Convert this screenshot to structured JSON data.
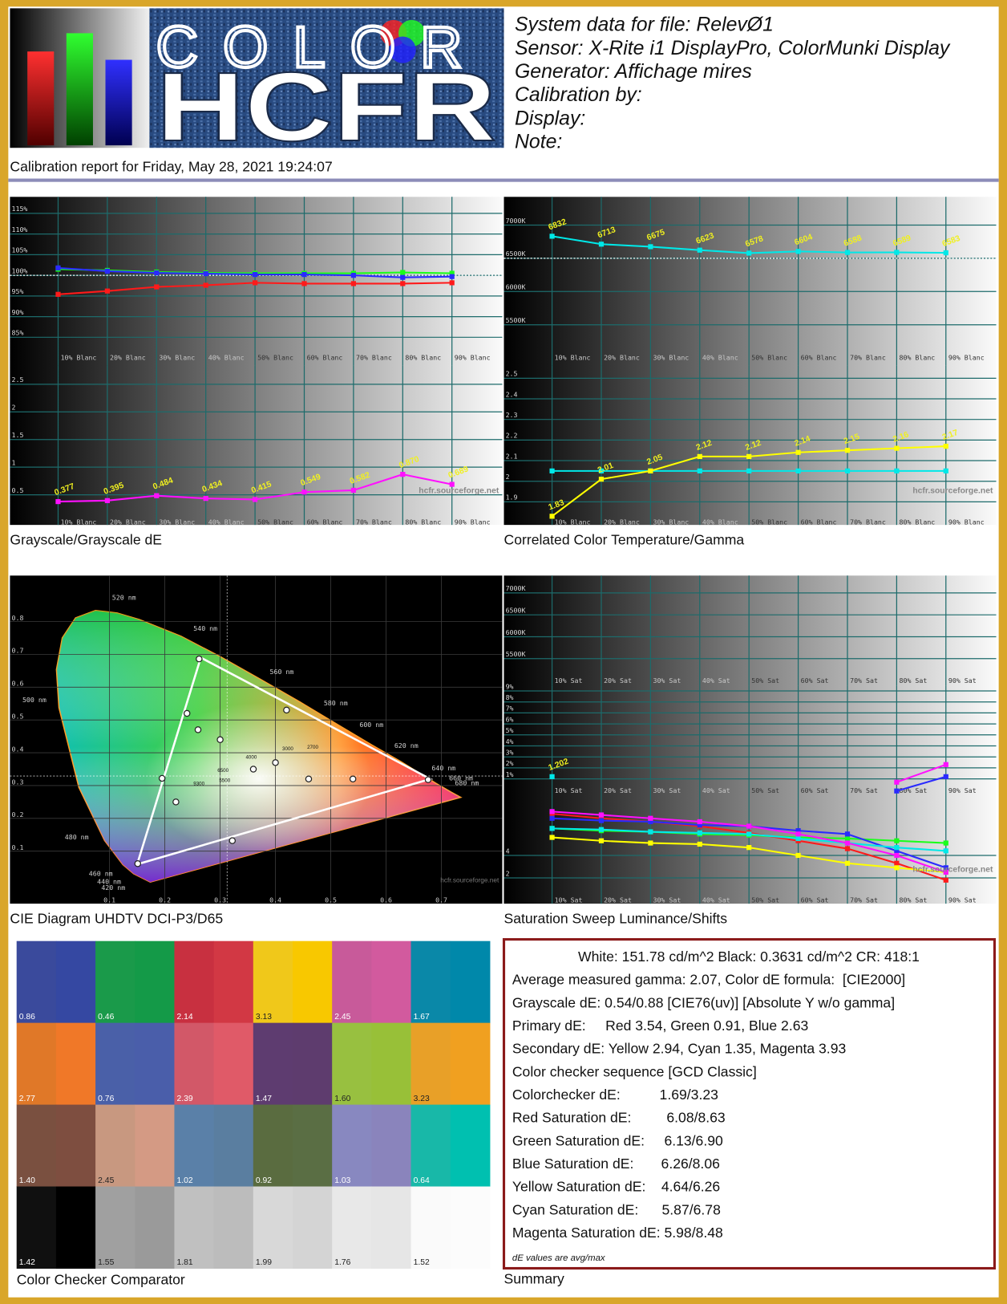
{
  "header": {
    "logo_top": "COLOR",
    "logo_bottom": "HCFR",
    "system_lines": [
      "System data for file: RelevØ1",
      "Sensor: X-Rite i1 DisplayPro, ColorMunki Display",
      "Generator: Affichage mires",
      "Calibration by:",
      "Display:",
      "Note:"
    ],
    "report_date": "Calibration report for Friday, May 28, 2021 19:24:07"
  },
  "chart_data": [
    {
      "type": "line",
      "title": "Grayscale/Grayscale dE",
      "categories": [
        "10% Blanc",
        "20% Blanc",
        "30% Blanc",
        "40% Blanc",
        "50% Blanc",
        "60% Blanc",
        "70% Blanc",
        "80% Blanc",
        "90% Blanc"
      ],
      "ylim": [
        82,
        118
      ],
      "yticks": [
        {
          "value": 85,
          "label": "85%"
        },
        {
          "value": 90,
          "label": "90%"
        },
        {
          "value": 95,
          "label": "95%"
        },
        {
          "value": 100,
          "label": "100%"
        },
        {
          "value": 105,
          "label": "105%"
        },
        {
          "value": 110,
          "label": "110%"
        },
        {
          "value": 115,
          "label": "115%"
        }
      ],
      "grid": true,
      "reference": 100,
      "series": [
        {
          "color": "#ff1a1a",
          "values": [
            95.4,
            96.2,
            97.2,
            97.6,
            98.2,
            98,
            98,
            98,
            98.2
          ]
        },
        {
          "color": "#1aff1a",
          "values": [
            101.5,
            101.2,
            100.8,
            100.6,
            100.5,
            100.5,
            100.5,
            100.7,
            100.5
          ]
        },
        {
          "color": "#2a2aff",
          "values": [
            101.8,
            101,
            100.6,
            100.4,
            100.2,
            100.2,
            100,
            99.5,
            99.7
          ]
        }
      ]
    },
    {
      "type": "line",
      "categories": [
        "10% Blanc",
        "20% Blanc",
        "30% Blanc",
        "40% Blanc",
        "50% Blanc",
        "60% Blanc",
        "70% Blanc",
        "80% Blanc",
        "90% Blanc"
      ],
      "ylim": [
        0,
        2.75
      ],
      "yticks": [
        0.5,
        1,
        1.5,
        2,
        2.5
      ],
      "grid": true,
      "watermark": "hcfr.sourceforge.net",
      "series": [
        {
          "color": "#ff10ff",
          "values": [
            0.377,
            0.395,
            0.484,
            0.434,
            0.415,
            0.549,
            0.582,
            0.87,
            0.689
          ],
          "value_labels": [
            "0.377",
            "0.395",
            "0.484",
            "0.434",
            "0.415",
            "0.549",
            "0.582",
            "0.870",
            "0.689"
          ]
        }
      ]
    },
    {
      "type": "line",
      "title": "Correlated Color Temperature/Gamma",
      "categories": [
        "10% Blanc",
        "20% Blanc",
        "30% Blanc",
        "40% Blanc",
        "50% Blanc",
        "60% Blanc",
        "70% Blanc",
        "80% Blanc",
        "90% Blanc"
      ],
      "ylim": [
        5000,
        7400
      ],
      "yticks": [
        {
          "value": 5500,
          "label": "5500K"
        },
        {
          "value": 6000,
          "label": "6000K"
        },
        {
          "value": 6500,
          "label": "6500K"
        },
        {
          "value": 7000,
          "label": "7000K"
        }
      ],
      "grid": true,
      "reference": 6500,
      "series": [
        {
          "color": "#00e8e8",
          "values": [
            6832,
            6713,
            6675,
            6623,
            6578,
            6604,
            6588,
            6589,
            6583
          ],
          "value_labels": [
            "6832",
            "6713",
            "6675",
            "6623",
            "6578",
            "6604",
            "6588",
            "6589",
            "6583"
          ]
        }
      ]
    },
    {
      "type": "line",
      "categories": [
        "10% Blanc",
        "20% Blanc",
        "30% Blanc",
        "40% Blanc",
        "50% Blanc",
        "60% Blanc",
        "70% Blanc",
        "80% Blanc",
        "90% Blanc"
      ],
      "ylim": [
        1.8,
        2.55
      ],
      "yticks": [
        1.9,
        2,
        2.1,
        2.2,
        2.3,
        2.4,
        2.5
      ],
      "grid": true,
      "watermark": "hcfr.sourceforge.net",
      "series": [
        {
          "color": "#00e8e8",
          "values": [
            2.05,
            2.05,
            2.05,
            2.05,
            2.05,
            2.05,
            2.05,
            2.05,
            2.05
          ]
        },
        {
          "color": "#ffff00",
          "values": [
            1.83,
            2.01,
            2.05,
            2.12,
            2.12,
            2.14,
            2.15,
            2.16,
            2.17
          ],
          "value_labels": [
            "1.83",
            "2.01",
            "2.05",
            "2.12",
            "2.12",
            "2.14",
            "2.15",
            "2.16",
            "2.17"
          ]
        }
      ]
    },
    {
      "type": "scatter",
      "title": "CIE Diagram UHDTV DCI-P3/D65",
      "xlim": [
        -0.08,
        0.81
      ],
      "ylim": [
        -0.06,
        0.94
      ],
      "xticks": [
        0.1,
        0.2,
        0.3,
        0.4,
        0.5,
        0.6,
        0.7
      ],
      "yticks": [
        0.1,
        0.2,
        0.3,
        0.4,
        0.5,
        0.6,
        0.7,
        0.8
      ],
      "grid": true,
      "watermark": "hcfr.sourceforge.net",
      "annotations": [
        "520 nm",
        "540 nm",
        "560 nm",
        "580 nm",
        "600 nm",
        "620 nm",
        "640 nm",
        "660 nm",
        "680 nm",
        "500 nm",
        "480 nm",
        "460 nm",
        "440 nm",
        "420 nm"
      ],
      "blackbody_labels": [
        "9300",
        "6500",
        "5500",
        "4000",
        "3000",
        "2700"
      ],
      "target_gamut": {
        "color": "#ffffff",
        "x": [
          0.68,
          0.265,
          0.15
        ],
        "y": [
          0.32,
          0.69,
          0.06
        ]
      },
      "white_point": {
        "x": 0.3127,
        "y": 0.329
      },
      "series": [
        {
          "color": "#ffffff",
          "x": [
            0.676,
            0.262,
            0.151,
            0.42,
            0.195,
            0.322,
            0.4,
            0.46,
            0.26,
            0.24,
            0.3,
            0.22,
            0.36,
            0.54
          ],
          "y": [
            0.318,
            0.686,
            0.062,
            0.53,
            0.322,
            0.132,
            0.37,
            0.32,
            0.47,
            0.52,
            0.44,
            0.25,
            0.35,
            0.32
          ]
        }
      ]
    },
    {
      "type": "line",
      "title": "Saturation Sweep Luminance/Shifts",
      "categories": [
        "10% Sat",
        "20% Sat",
        "30% Sat",
        "40% Sat",
        "50% Sat",
        "60% Sat",
        "70% Sat",
        "80% Sat",
        "90% Sat"
      ],
      "ylim": [
        5300,
        7150
      ],
      "yticks": [
        {
          "value": 5500,
          "label": "5500K"
        },
        {
          "value": 6000,
          "label": "6000K"
        },
        {
          "value": 6500,
          "label": "6500K"
        },
        {
          "value": 7000,
          "label": "7000K"
        }
      ],
      "grid": true,
      "series": []
    },
    {
      "type": "line",
      "categories": [
        "10% Sat",
        "20% Sat",
        "30% Sat",
        "40% Sat",
        "50% Sat",
        "60% Sat",
        "70% Sat",
        "80% Sat",
        "90% Sat"
      ],
      "ylim": [
        0,
        10.5
      ],
      "yticks": [
        {
          "value": 1,
          "label": "1%"
        },
        {
          "value": 2,
          "label": "2%"
        },
        {
          "value": 3,
          "label": "3%"
        },
        {
          "value": 4,
          "label": "4%"
        },
        {
          "value": 5,
          "label": "5%"
        },
        {
          "value": 6,
          "label": "6%"
        },
        {
          "value": 7,
          "label": "7%"
        },
        {
          "value": 8,
          "label": "8%"
        },
        {
          "value": 9,
          "label": "9%"
        }
      ],
      "grid": true,
      "series": [
        {
          "color": "#00e8e8",
          "values": [
            1.202,
            null,
            null,
            null,
            null,
            null,
            null,
            null,
            null
          ],
          "value_labels": [
            "1.202",
            null,
            null,
            null,
            null,
            null,
            null,
            null,
            null
          ]
        },
        {
          "color": "#ff10ff",
          "values": [
            null,
            null,
            null,
            null,
            null,
            null,
            null,
            0.7,
            2.3
          ]
        },
        {
          "color": "#2a2aff",
          "values": [
            null,
            null,
            null,
            null,
            null,
            null,
            null,
            -0.1,
            1.2
          ]
        }
      ]
    },
    {
      "type": "line",
      "categories": [
        "10% Sat",
        "20% Sat",
        "30% Sat",
        "40% Sat",
        "50% Sat",
        "60% Sat",
        "70% Sat",
        "80% Sat",
        "90% Sat"
      ],
      "ylim": [
        0,
        8.5
      ],
      "yticks": [
        2,
        4
      ],
      "grid": true,
      "watermark": "hcfr.sourceforge.net",
      "series": [
        {
          "color": "#ff1a1a",
          "values": [
            7.7,
            7.3,
            7.0,
            6.6,
            6.0,
            5.3,
            4.6,
            3.3,
            1.8
          ]
        },
        {
          "color": "#1aff1a",
          "values": [
            6.4,
            6.2,
            6.1,
            5.9,
            5.8,
            5.6,
            5.5,
            5.3,
            5.1
          ]
        },
        {
          "color": "#2a2aff",
          "values": [
            7.3,
            7.1,
            7.0,
            6.7,
            6.6,
            6.2,
            5.9,
            4.4,
            2.9
          ]
        },
        {
          "color": "#ffff00",
          "values": [
            5.6,
            5.3,
            5.1,
            5.0,
            4.7,
            4.0,
            3.3,
            2.9,
            2.5
          ]
        },
        {
          "color": "#00e8e8",
          "values": [
            6.4,
            6.3,
            6.1,
            6.0,
            5.9,
            5.5,
            5.1,
            4.7,
            4.4
          ]
        },
        {
          "color": "#ff10ff",
          "values": [
            7.9,
            7.6,
            7.3,
            7.0,
            6.6,
            5.9,
            5.1,
            4.0,
            2.5
          ]
        }
      ]
    }
  ],
  "color_checker": {
    "title": "Color Checker Comparator",
    "patches": [
      {
        "label": "0.86",
        "colors": [
          "#3a4a9c",
          "#3548a2"
        ]
      },
      {
        "label": "0.46",
        "colors": [
          "#1a9a4a",
          "#149a48"
        ]
      },
      {
        "label": "2.14",
        "colors": [
          "#c83040",
          "#d23844"
        ]
      },
      {
        "label": "3.13",
        "colors": [
          "#f0c81a",
          "#f8c800"
        ]
      },
      {
        "label": "2.45",
        "colors": [
          "#c85a9a",
          "#d25a9e"
        ]
      },
      {
        "label": "1.67",
        "colors": [
          "#0a88a8",
          "#0088aa"
        ]
      },
      {
        "label": "2.77",
        "colors": [
          "#e07828",
          "#f07828"
        ]
      },
      {
        "label": "0.76",
        "colors": [
          "#4a60a8",
          "#4a5eaa"
        ]
      },
      {
        "label": "2.39",
        "colors": [
          "#d25868",
          "#e05a68"
        ]
      },
      {
        "label": "1.47",
        "colors": [
          "#5e3c70",
          "#5e3c6e"
        ]
      },
      {
        "label": "1.60",
        "colors": [
          "#98c040",
          "#98c038"
        ]
      },
      {
        "label": "3.23",
        "colors": [
          "#e8a028",
          "#f0a020"
        ]
      },
      {
        "label": "1.40",
        "colors": [
          "#7a5040",
          "#7e4e40"
        ]
      },
      {
        "label": "2.45",
        "colors": [
          "#c89880",
          "#d49a84"
        ]
      },
      {
        "label": "1.02",
        "colors": [
          "#5a80a8",
          "#5a7ea0"
        ]
      },
      {
        "label": "0.92",
        "colors": [
          "#5a6c40",
          "#5a6e44"
        ]
      },
      {
        "label": "1.03",
        "colors": [
          "#8888c0",
          "#8a84bc"
        ]
      },
      {
        "label": "0.64",
        "colors": [
          "#18b8a8",
          "#00c0b0"
        ]
      },
      {
        "label": "1.42",
        "colors": [
          "#101010",
          "#000000"
        ]
      },
      {
        "label": "1.55",
        "colors": [
          "#a0a0a0",
          "#9a9a9a"
        ]
      },
      {
        "label": "1.81",
        "colors": [
          "#c0c0c0",
          "#bcbcbc"
        ]
      },
      {
        "label": "1.99",
        "colors": [
          "#d8d8d8",
          "#d4d4d4"
        ]
      },
      {
        "label": "1.76",
        "colors": [
          "#e8e8e8",
          "#e6e6e6"
        ]
      },
      {
        "label": "1.52",
        "colors": [
          "#fafafa",
          "#fcfcfc"
        ]
      }
    ]
  },
  "summary": {
    "title": "Summary",
    "lines": [
      {
        "text": "White: 151.78 cd/m^2 Black: 0.3631 cd/m^2 CR: 418:1"
      },
      {
        "text": "Average measured gamma: 2.07, Color dE formula:  [CIE2000]"
      },
      {
        "text": "Grayscale dE: 0.54/0.88 [CIE76(uv)] [Absolute Y w/o gamma]"
      },
      {
        "text": "Primary dE:     Red 3.54, Green 0.91, Blue 2.63"
      },
      {
        "text": "Secondary dE: Yellow 2.94, Cyan 1.35, Magenta 3.93"
      },
      {
        "text": "Color checker sequence [GCD Classic]",
        "color": "#2222cc"
      },
      {
        "text": "Colorchecker dE:          1.69/3.23"
      },
      {
        "text": "Red Saturation dE:         6.08/8.63"
      },
      {
        "text": "Green Saturation dE:     6.13/6.90"
      },
      {
        "text": "Blue Saturation dE:       6.26/8.06"
      },
      {
        "text": "Yellow Saturation dE:    4.64/6.26"
      },
      {
        "text": "Cyan Saturation dE:      5.87/6.78"
      },
      {
        "text": "Magenta Saturation dE: 5.98/8.48"
      }
    ],
    "footnote": "dE values are avg/max"
  }
}
